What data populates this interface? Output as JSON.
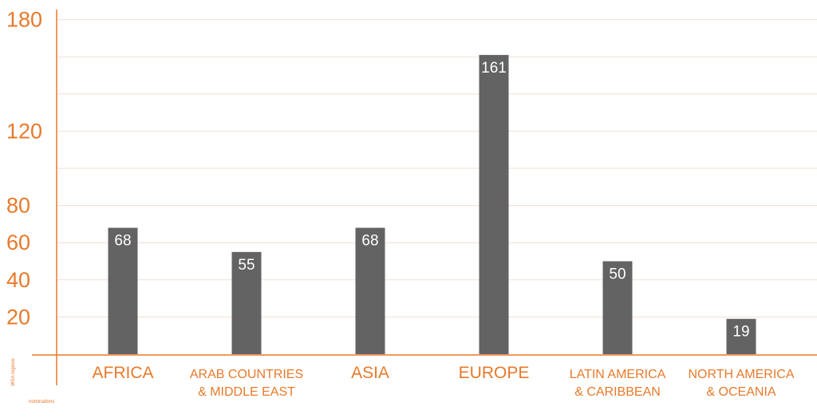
{
  "chart_data": {
    "type": "bar",
    "title": "",
    "xlabel": "nominations",
    "ylabel": "WSA regions",
    "categories": [
      [
        "AFRICA"
      ],
      [
        "ARAB COUNTRIES",
        "& MIDDLE EAST"
      ],
      [
        "ASIA"
      ],
      [
        "EUROPE"
      ],
      [
        "LATIN AMERICA",
        "& CARIBBEAN"
      ],
      [
        "NORTH AMERICA",
        "& OCEANIA"
      ]
    ],
    "values": [
      68,
      55,
      68,
      161,
      50,
      19
    ],
    "data_labels": [
      "68",
      "55",
      "68",
      "161",
      "50",
      "19"
    ],
    "y_ticks": [
      20,
      40,
      60,
      80,
      120,
      180
    ],
    "y_tick_labels": [
      "20",
      "40",
      "60",
      "80",
      "120",
      "180"
    ],
    "ylim": [
      0,
      180
    ],
    "grid": true,
    "legend": "none",
    "colors": {
      "bar": "#636363",
      "accent": "#e8792a",
      "grid": "#f6ddd0",
      "data_label": "#ffffff"
    }
  }
}
